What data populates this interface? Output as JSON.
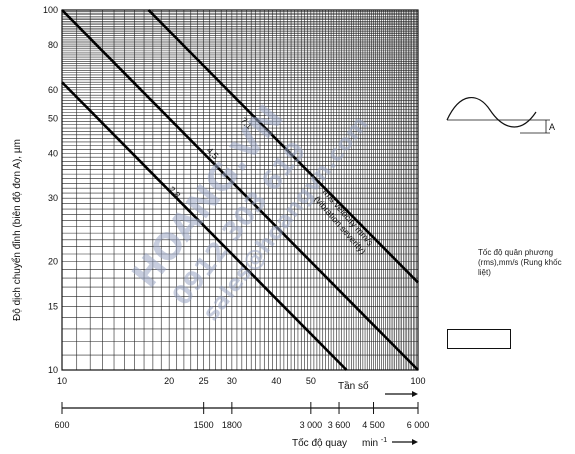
{
  "chart_data": {
    "type": "line",
    "x_scale": "log",
    "y_scale": "log",
    "xlim": [
      10,
      100
    ],
    "ylim": [
      10,
      100
    ],
    "ylabel": "Độ dịch chuyển đỉnh (biên độ đơn A), µm",
    "xlabel": "Tần số",
    "x2label": "Tốc độ quay",
    "x2unit": "min",
    "x2unit_exp": "-1",
    "x_ticks": [
      10,
      20,
      25,
      30,
      40,
      50,
      100
    ],
    "x_tick_labels": [
      "10",
      "20",
      "25",
      "30",
      "40",
      "50",
      "100"
    ],
    "x2_ticks": [
      600,
      1500,
      1800,
      3000,
      3600,
      4500,
      6000
    ],
    "x2_tick_labels": [
      "600",
      "1500",
      "1800",
      "3 000",
      "3 600",
      "4 500",
      "6 000"
    ],
    "y_ticks": [
      10,
      15,
      20,
      30,
      40,
      50,
      60,
      80,
      100
    ],
    "y_tick_labels": [
      "10",
      "15",
      "20",
      "30",
      "40",
      "50",
      "60",
      "80",
      "100"
    ],
    "grid": true,
    "series": [
      {
        "name": "7,1",
        "velocity_mm_s": 7.1,
        "x": [
          10,
          100
        ],
        "y": [
          100,
          10
        ]
      },
      {
        "name": "4,5",
        "velocity_mm_s": 4.5,
        "x": [
          17.5,
          100
        ],
        "y": [
          100,
          17.5
        ]
      },
      {
        "name": "2,8",
        "velocity_mm_s": 2.8,
        "x": [
          10,
          63
        ],
        "y": [
          63,
          10
        ]
      }
    ],
    "annotation": {
      "line1": "rms velocity mm/s",
      "line2": "(vibration severity)"
    },
    "legend": {
      "label": "Tốc độ quân phương (rms),mm/s (Rung khốc liệt)",
      "amplitude_symbol": "A"
    }
  },
  "watermark": {
    "line1": "HOANG.VN",
    "line2": "0912 303 619",
    "line3": "sales@hoangvn.com"
  }
}
